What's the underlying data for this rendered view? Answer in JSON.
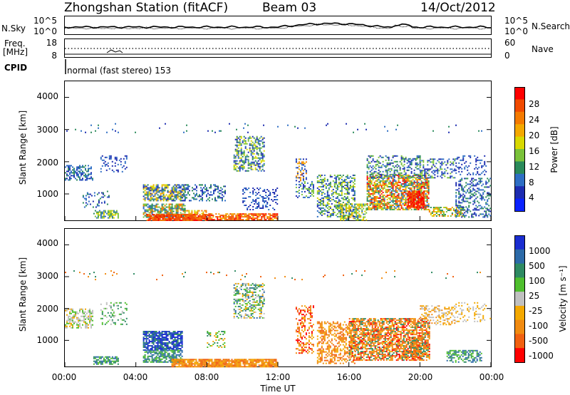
{
  "header": {
    "station": "Zhongshan Station (fitACF)",
    "beam": "Beam 03",
    "date": "14/Oct/2012"
  },
  "status_panels": {
    "nsky_label": "N.Sky",
    "nsky_ticks": [
      "10^5",
      "10^0"
    ],
    "nsearch_label": "N.Search",
    "nsearch_ticks": [
      "10^5",
      "10^0"
    ],
    "freq_label_1": "Freq.",
    "freq_label_2": "[MHz]",
    "freq_ticks": [
      "18",
      "8"
    ],
    "nave_label": "Nave",
    "nave_ticks": [
      "60",
      "0"
    ],
    "cpid_label": "CPID",
    "cpid_text": "normal (fast stereo) 153"
  },
  "chart_data": [
    {
      "type": "heatmap",
      "name": "power",
      "ylabel": "Slant Range [km]",
      "yticks": [
        "4000",
        "3000",
        "2000",
        "1000"
      ],
      "ylim": [
        180,
        4500
      ],
      "colorbar_label": "Power [dB]",
      "colorbar_ticks": [
        "28",
        "24",
        "20",
        "16",
        "12",
        "8",
        "4"
      ],
      "colorbar_colors": [
        "#ff0000",
        "#f04a00",
        "#f47a00",
        "#f3a800",
        "#d8d800",
        "#7ac23a",
        "#2a8a5a",
        "#2e6ec4",
        "#1d2cb0",
        "#0a22ff"
      ]
    },
    {
      "type": "heatmap",
      "name": "velocity",
      "ylabel": "Slant Range [km]",
      "yticks": [
        "4000",
        "3000",
        "2000",
        "1000"
      ],
      "ylim": [
        180,
        4500
      ],
      "colorbar_label": "Velocity [m s⁻¹]",
      "colorbar_ticks": [
        "1000",
        "500",
        "100",
        "25",
        "-25",
        "-100",
        "-500",
        "-1000"
      ],
      "colorbar_colors": [
        "#1a2dd0",
        "#2c6aa8",
        "#2e8a62",
        "#4fbf2e",
        "#c0c0c0",
        "#f3a800",
        "#f08a10",
        "#f06010",
        "#ff0000"
      ]
    }
  ],
  "x_axis": {
    "ticks": [
      "00:00",
      "04:00",
      "08:00",
      "12:00",
      "16:00",
      "20:00",
      "00:00"
    ],
    "label": "Time UT"
  }
}
